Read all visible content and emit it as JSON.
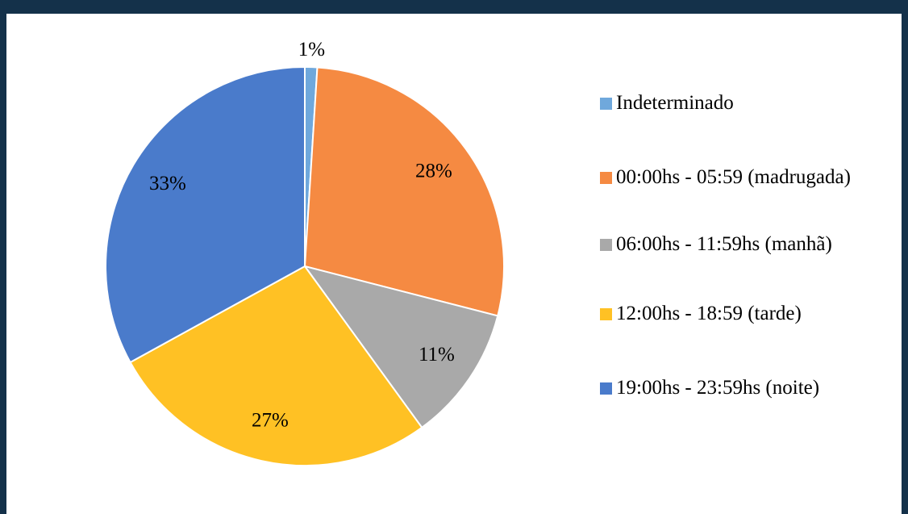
{
  "chart_data": {
    "type": "pie",
    "categories": [
      "Indeterminado",
      "00:00hs - 05:59 (madrugada)",
      "06:00hs - 11:59hs (manhã)",
      "12:00hs - 18:59 (tarde)",
      "19:00hs - 23:59hs (noite)"
    ],
    "values": [
      1,
      28,
      11,
      27,
      33
    ],
    "value_labels": [
      "1%",
      "28%",
      "11%",
      "27%",
      "33%"
    ],
    "colors": [
      "#6fa8dc",
      "#f58a42",
      "#a9a9a9",
      "#ffc124",
      "#4a7bcb"
    ],
    "legend": "right"
  }
}
